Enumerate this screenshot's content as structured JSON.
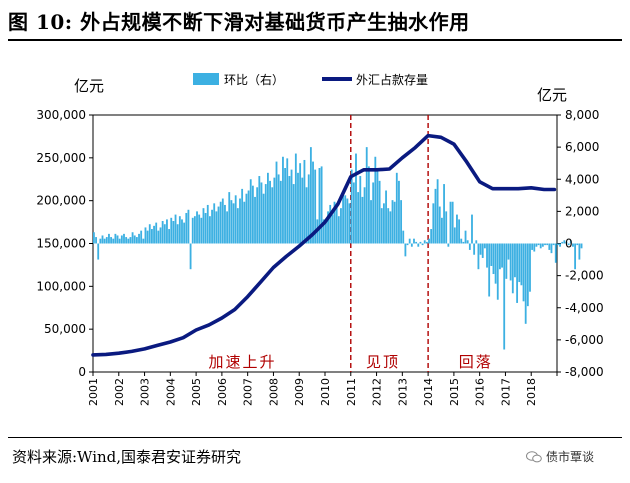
{
  "figure": {
    "title": "图 10:  外占规模不断下滑对基础货币产生抽水作用",
    "source": "资料来源:Wind,国泰君安证券研究",
    "watermark": "债市覃谈"
  },
  "chart_data": {
    "type": "bar+line",
    "title": "图 10:  外占规模不断下滑对基础货币产生抽水作用",
    "legend": [
      "环比（右）",
      "外汇占款存量"
    ],
    "left_unit": "亿元",
    "right_unit": "亿元",
    "left_axis": {
      "min": 0,
      "max": 300000,
      "ticks": [
        "0",
        "50,000",
        "100,000",
        "150,000",
        "200,000",
        "250,000",
        "300,000"
      ]
    },
    "right_axis": {
      "min": -8000,
      "max": 8000,
      "ticks": [
        "-8,000",
        "-6,000",
        "-4,000",
        "-2,000",
        "0",
        "2,000",
        "4,000",
        "6,000",
        "8,000"
      ]
    },
    "x_labels": [
      "2001",
      "2002",
      "2003",
      "2004",
      "2005",
      "2006",
      "2007",
      "2008",
      "2009",
      "2010",
      "2011",
      "2012",
      "2013",
      "2014",
      "2015",
      "2016",
      "2017",
      "2018"
    ],
    "x_range": [
      2001,
      2019
    ],
    "phases": [
      {
        "label": "加速上升",
        "at": 2006.8
      },
      {
        "label": "见顶",
        "at": 2012.25
      },
      {
        "label": "回落",
        "at": 2015.85
      }
    ],
    "phase_dividers": [
      2011.0,
      2014.0
    ],
    "stock_series": {
      "name": "外汇占款存量",
      "points": [
        [
          2001.0,
          20000
        ],
        [
          2001.5,
          20500
        ],
        [
          2002.0,
          22000
        ],
        [
          2002.5,
          24000
        ],
        [
          2003.0,
          27000
        ],
        [
          2003.5,
          31000
        ],
        [
          2004.0,
          35000
        ],
        [
          2004.5,
          40000
        ],
        [
          2005.0,
          49000
        ],
        [
          2005.5,
          55000
        ],
        [
          2006.0,
          63000
        ],
        [
          2006.5,
          73000
        ],
        [
          2007.0,
          88000
        ],
        [
          2007.5,
          105000
        ],
        [
          2008.0,
          122000
        ],
        [
          2008.5,
          135000
        ],
        [
          2009.0,
          147000
        ],
        [
          2009.5,
          160000
        ],
        [
          2010.0,
          175000
        ],
        [
          2010.5,
          196000
        ],
        [
          2011.0,
          228000
        ],
        [
          2011.5,
          236000
        ],
        [
          2012.0,
          236000
        ],
        [
          2012.5,
          237000
        ],
        [
          2013.0,
          250000
        ],
        [
          2013.5,
          262000
        ],
        [
          2014.0,
          276000
        ],
        [
          2014.5,
          274000
        ],
        [
          2015.0,
          266000
        ],
        [
          2015.5,
          245000
        ],
        [
          2016.0,
          222000
        ],
        [
          2016.5,
          214000
        ],
        [
          2017.0,
          214000
        ],
        [
          2017.5,
          214000
        ],
        [
          2018.0,
          215000
        ],
        [
          2018.5,
          213000
        ],
        [
          2018.9,
          213000
        ]
      ]
    },
    "monthly_change_series": {
      "name": "环比（右）",
      "start": 2001.0,
      "step_months": 1,
      "values": [
        700,
        400,
        -1000,
        300,
        500,
        300,
        400,
        600,
        400,
        300,
        600,
        500,
        300,
        500,
        600,
        400,
        300,
        400,
        700,
        500,
        400,
        600,
        800,
        300,
        1000,
        800,
        1200,
        900,
        1100,
        1300,
        800,
        1000,
        1400,
        1200,
        1500,
        900,
        1600,
        1400,
        1800,
        1200,
        1700,
        1500,
        1300,
        1900,
        2100,
        -1600,
        1600,
        1700,
        2000,
        1800,
        1600,
        2200,
        1900,
        2400,
        1700,
        2100,
        2500,
        2000,
        2300,
        2600,
        2800,
        2400,
        2000,
        3200,
        2700,
        2500,
        3000,
        2200,
        2800,
        3400,
        2600,
        3100,
        3300,
        4000,
        3600,
        2900,
        3500,
        4200,
        3800,
        3100,
        3700,
        4400,
        3900,
        3500,
        4100,
        5100,
        4300,
        3900,
        5400,
        4700,
        5300,
        4200,
        4600,
        3700,
        5600,
        4400,
        5000,
        4100,
        5200,
        3500,
        4300,
        6000,
        5100,
        4600,
        1500,
        4700,
        4800,
        1500,
        1300,
        2000,
        2400,
        1800,
        2600,
        2500,
        1700,
        2200,
        3100,
        3000,
        2800,
        2500,
        4600,
        3800,
        5600,
        3200,
        4200,
        2900,
        3500,
        6000,
        4800,
        2700,
        3800,
        5400,
        4700,
        3900,
        2200,
        2500,
        3300,
        2200,
        2000,
        2700,
        2600,
        4400,
        3900,
        2700,
        800,
        -800,
        -100,
        300,
        -200,
        300,
        100,
        -200,
        100,
        -100,
        200,
        100,
        300,
        900,
        2500,
        3400,
        4000,
        2300,
        1600,
        3700,
        2000,
        -200,
        2600,
        2600,
        1000,
        1800,
        1500,
        300,
        100,
        800,
        200,
        -400,
        1800,
        -700,
        200,
        -1600,
        -700,
        -900,
        -300,
        -1500,
        -3300,
        -1400,
        -1900,
        -2500,
        -3500,
        -1600,
        -1500,
        -6600,
        -2200,
        -1000,
        -2300,
        -3100,
        -2100,
        -3700,
        -2400,
        -2600,
        -3600,
        -5000,
        -3900,
        -3000,
        -400,
        -500,
        -200,
        -100,
        -300,
        -200,
        -100,
        -100,
        -400,
        -600,
        -100,
        -1200,
        -100,
        -200,
        100,
        200,
        100,
        -100,
        200,
        -200,
        -1600,
        -100,
        -1000,
        -300
      ]
    }
  }
}
